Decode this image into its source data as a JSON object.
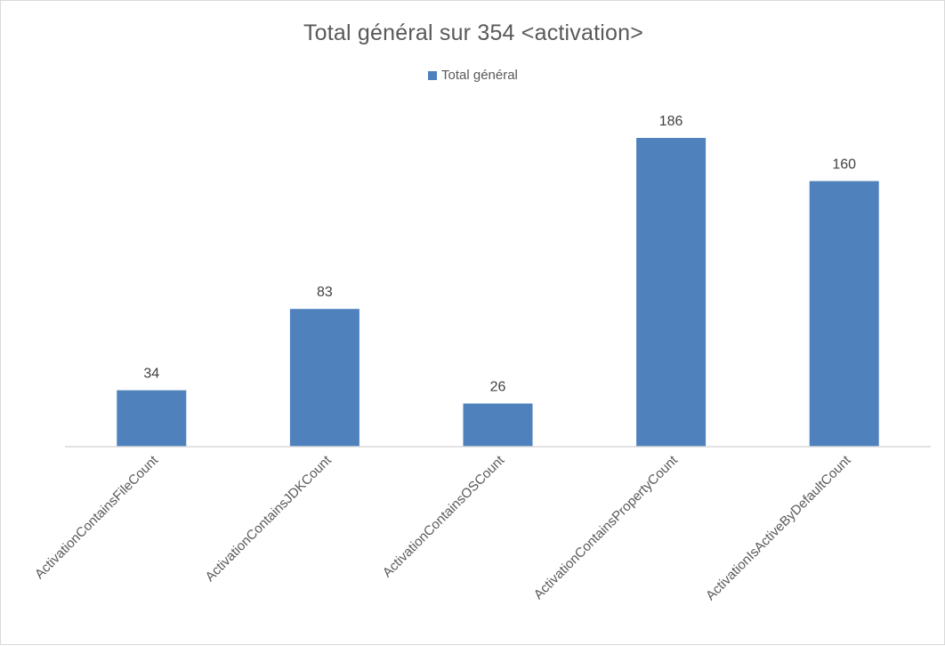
{
  "chart_data": {
    "type": "bar",
    "title": "Total général sur 354 <activation>",
    "categories": [
      "ActivationContainsFileCount",
      "ActivationContainsJDKCount",
      "ActivationContainsOSCount",
      "ActivationContainsPropertyCount",
      "ActivationIsActiveByDefaultCount"
    ],
    "series": [
      {
        "name": "Total général",
        "values": [
          34,
          83,
          26,
          186,
          160
        ],
        "color": "#4f81bd"
      }
    ],
    "data_labels": [
      "34",
      "83",
      "26",
      "186",
      "160"
    ],
    "xlabel": "",
    "ylabel": "",
    "ylim": [
      0,
      186
    ],
    "grid": false,
    "legend_position": "top"
  }
}
